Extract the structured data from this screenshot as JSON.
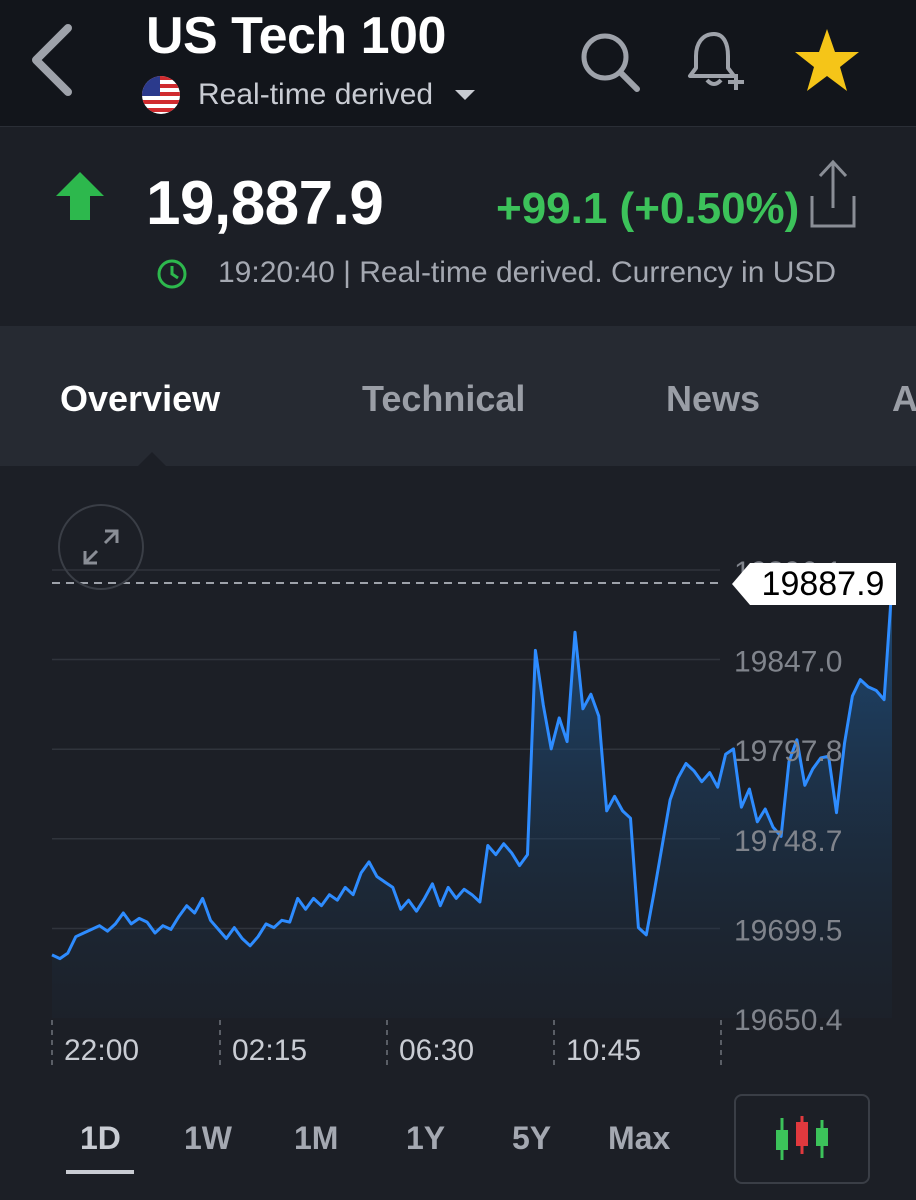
{
  "header": {
    "title": "US Tech 100",
    "subtitle": "Real-time derived",
    "icons": [
      "back-icon",
      "search-icon",
      "bell-plus-icon",
      "star-icon"
    ],
    "star_color": "#f5c518"
  },
  "quote": {
    "price": "19,887.9",
    "change": "+99.1 (+0.50%)",
    "timestamp_line": "19:20:40 | Real-time derived. Currency in USD",
    "up_color": "#2db84d",
    "change_color": "#3cc25a"
  },
  "tabs": [
    {
      "label": "Overview",
      "active": true
    },
    {
      "label": "Technical",
      "active": false
    },
    {
      "label": "News",
      "active": false
    },
    {
      "label": "A",
      "active": false
    }
  ],
  "chart_data": {
    "type": "area",
    "line_color": "#2e8cff",
    "current_value": "19887.9",
    "y_ticks": [
      "19650.4",
      "19699.5",
      "19748.7",
      "19797.8",
      "19847.0",
      "19896.1"
    ],
    "x_ticks": [
      "22:00",
      "02:15",
      "06:30",
      "10:45"
    ],
    "ylim": [
      19650.4,
      19896.1
    ],
    "grid": true,
    "series": [
      {
        "points": [
          [
            0,
            19685
          ],
          [
            3,
            19683
          ],
          [
            6,
            19686
          ],
          [
            9,
            19695
          ],
          [
            12,
            19697
          ],
          [
            15,
            19699
          ],
          [
            18,
            19701
          ],
          [
            21,
            19698
          ],
          [
            24,
            19702
          ],
          [
            27,
            19708
          ],
          [
            30,
            19702
          ],
          [
            33,
            19705
          ],
          [
            36,
            19703
          ],
          [
            39,
            19697
          ],
          [
            42,
            19701
          ],
          [
            45,
            19699
          ],
          [
            48,
            19706
          ],
          [
            51,
            19712
          ],
          [
            54,
            19708
          ],
          [
            57,
            19716
          ],
          [
            60,
            19704
          ],
          [
            63,
            19699
          ],
          [
            66,
            19694
          ],
          [
            69,
            19700
          ],
          [
            72,
            19694
          ],
          [
            75,
            19690
          ],
          [
            78,
            19695
          ],
          [
            81,
            19702
          ],
          [
            84,
            19700
          ],
          [
            87,
            19704
          ],
          [
            90,
            19703
          ],
          [
            93,
            19716
          ],
          [
            96,
            19710
          ],
          [
            99,
            19716
          ],
          [
            102,
            19712
          ],
          [
            105,
            19718
          ],
          [
            108,
            19715
          ],
          [
            111,
            19722
          ],
          [
            114,
            19718
          ],
          [
            117,
            19730
          ],
          [
            120,
            19736
          ],
          [
            123,
            19728
          ],
          [
            126,
            19725
          ],
          [
            129,
            19722
          ],
          [
            132,
            19710
          ],
          [
            135,
            19715
          ],
          [
            138,
            19709
          ],
          [
            141,
            19716
          ],
          [
            144,
            19724
          ],
          [
            147,
            19712
          ],
          [
            150,
            19722
          ],
          [
            153,
            19716
          ],
          [
            156,
            19721
          ],
          [
            159,
            19718
          ],
          [
            162,
            19714
          ],
          [
            165,
            19745
          ],
          [
            168,
            19740
          ],
          [
            171,
            19746
          ],
          [
            174,
            19741
          ],
          [
            177,
            19734
          ],
          [
            180,
            19740
          ],
          [
            183,
            19852
          ],
          [
            186,
            19822
          ],
          [
            189,
            19798
          ],
          [
            192,
            19815
          ],
          [
            195,
            19802
          ],
          [
            198,
            19862
          ],
          [
            201,
            19820
          ],
          [
            204,
            19828
          ],
          [
            207,
            19816
          ],
          [
            210,
            19764
          ],
          [
            213,
            19772
          ],
          [
            216,
            19764
          ],
          [
            219,
            19760
          ],
          [
            222,
            19700
          ],
          [
            225,
            19696
          ],
          [
            228,
            19720
          ],
          [
            231,
            19745
          ],
          [
            234,
            19770
          ],
          [
            237,
            19782
          ],
          [
            240,
            19790
          ],
          [
            243,
            19786
          ],
          [
            246,
            19780
          ],
          [
            249,
            19785
          ],
          [
            252,
            19777
          ],
          [
            255,
            19795
          ],
          [
            258,
            19798
          ],
          [
            261,
            19766
          ],
          [
            264,
            19776
          ],
          [
            267,
            19758
          ],
          [
            270,
            19765
          ],
          [
            273,
            19755
          ],
          [
            276,
            19750
          ],
          [
            279,
            19791
          ],
          [
            282,
            19803
          ],
          [
            285,
            19778
          ],
          [
            288,
            19787
          ],
          [
            291,
            19793
          ],
          [
            294,
            19794
          ],
          [
            297,
            19763
          ],
          [
            300,
            19801
          ],
          [
            303,
            19827
          ],
          [
            306,
            19836
          ],
          [
            309,
            19832
          ],
          [
            312,
            19830
          ],
          [
            315,
            19825
          ],
          [
            318,
            19887.9
          ]
        ]
      }
    ]
  },
  "ranges": [
    {
      "label": "1D",
      "active": true
    },
    {
      "label": "1W",
      "active": false
    },
    {
      "label": "1M",
      "active": false
    },
    {
      "label": "1Y",
      "active": false
    },
    {
      "label": "5Y",
      "active": false
    },
    {
      "label": "Max",
      "active": false
    }
  ],
  "candle_colors": {
    "up": "#3cc25a",
    "down": "#e0393e"
  }
}
